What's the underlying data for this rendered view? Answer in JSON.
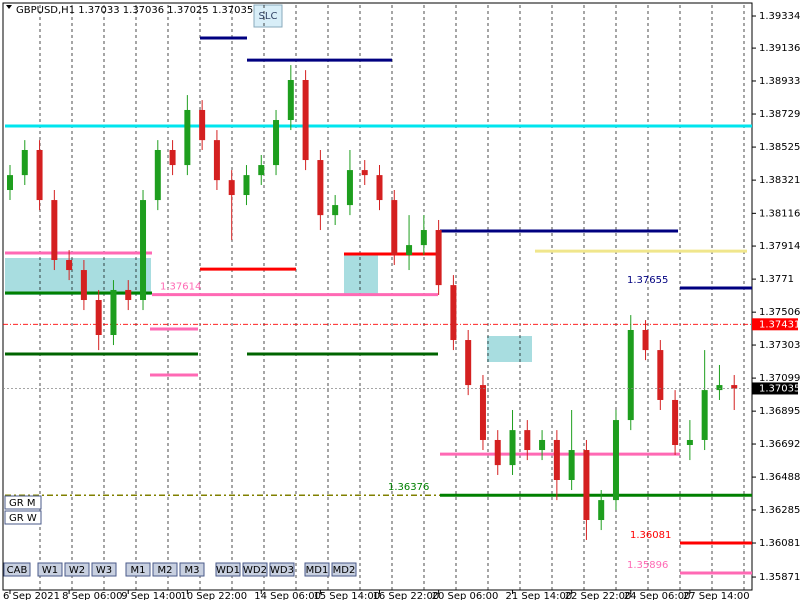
{
  "chart_data": {
    "type": "candlestick",
    "title": "GBPUSD,H1  1.37033 1.37036 1.37025 1.37035",
    "slc_button": "SLC",
    "buttons": [
      "CAB",
      "W1",
      "W2",
      "W3",
      "M1",
      "M2",
      "M3",
      "WD1",
      "WD2",
      "WD3",
      "MD1",
      "MD2"
    ],
    "side_buttons": [
      "GR M",
      "GR W"
    ],
    "categories": [
      "6 Sep 2021",
      null,
      null,
      null,
      "8 Sep 06:00",
      null,
      null,
      null,
      "9 Sep 14:00",
      null,
      null,
      null,
      "10 Sep 22:00",
      null,
      null,
      null,
      null,
      "14 Sep 06:00",
      null,
      null,
      null,
      "15 Sep 14:00",
      null,
      null,
      null,
      "16 Sep 22:00",
      null,
      null,
      null,
      "20 Sep 06:00",
      null,
      null,
      null,
      null,
      "21 Sep 14:00",
      null,
      null,
      null,
      "22 Sep 22:00",
      null,
      null,
      null,
      "24 Sep 06:00",
      null,
      null,
      null,
      "27 Sep 14:00",
      null,
      null,
      null
    ],
    "open": [
      1.3826,
      1.38352,
      1.38507,
      1.38198,
      1.37828,
      1.37766,
      1.37581,
      1.37365,
      1.37643,
      1.37581,
      1.38198,
      1.38507,
      1.38414,
      1.38754,
      1.38568,
      1.38321,
      1.38229,
      1.38352,
      1.38414,
      1.38692,
      1.38939,
      1.38445,
      1.38105,
      1.38167,
      1.38383,
      1.38352,
      1.38198,
      1.37859,
      1.3792,
      1.38013,
      1.37673,
      1.37334,
      1.37056,
      1.36717,
      1.36562,
      1.36778,
      1.36655,
      1.36717,
      1.3647,
      1.36655,
      1.36223,
      1.36346,
      1.3684,
      1.37396,
      1.37272,
      1.36964,
      1.36686,
      1.36717,
      1.37025,
      1.37056
    ],
    "high": [
      1.38414,
      1.38568,
      1.38568,
      1.3826,
      1.37889,
      1.37828,
      1.37643,
      1.37704,
      1.37704,
      1.3826,
      1.38568,
      1.38568,
      1.38846,
      1.38815,
      1.3863,
      1.38383,
      1.38414,
      1.38476,
      1.38754,
      1.39031,
      1.39,
      1.38507,
      1.38229,
      1.38507,
      1.38445,
      1.38414,
      1.3826,
      1.38105,
      1.38105,
      1.38075,
      1.37735,
      1.37396,
      1.37118,
      1.36778,
      1.36902,
      1.3684,
      1.36778,
      1.36778,
      1.36902,
      1.36717,
      1.36408,
      1.36902,
      1.37488,
      1.37457,
      1.37334,
      1.37025,
      1.3684,
      1.37272,
      1.3718,
      1.37118
    ],
    "low": [
      1.38198,
      1.38291,
      1.38136,
      1.37766,
      1.37704,
      1.37519,
      1.37272,
      1.37303,
      1.37519,
      1.37519,
      1.38136,
      1.38352,
      1.38352,
      1.38507,
      1.3826,
      1.37951,
      1.38167,
      1.38291,
      1.38352,
      1.3863,
      1.38383,
      1.38013,
      1.38044,
      1.38105,
      1.38291,
      1.38136,
      1.37797,
      1.37766,
      1.37859,
      1.37612,
      1.37272,
      1.36994,
      1.36655,
      1.36501,
      1.36501,
      1.36593,
      1.36593,
      1.36346,
      1.36408,
      1.361,
      1.36161,
      1.36285,
      1.36778,
      1.3721,
      1.36902,
      1.36624,
      1.36593,
      1.36655,
      1.36964,
      1.36902
    ],
    "close": [
      1.38352,
      1.38507,
      1.38198,
      1.37828,
      1.37766,
      1.37581,
      1.37365,
      1.37643,
      1.37581,
      1.38198,
      1.38507,
      1.38414,
      1.38754,
      1.38568,
      1.38321,
      1.38229,
      1.38352,
      1.38414,
      1.38692,
      1.38939,
      1.38445,
      1.38105,
      1.38167,
      1.38383,
      1.38352,
      1.38198,
      1.37859,
      1.3792,
      1.38013,
      1.37673,
      1.37334,
      1.37056,
      1.36717,
      1.36562,
      1.36778,
      1.36655,
      1.36717,
      1.3647,
      1.36655,
      1.36223,
      1.36346,
      1.3684,
      1.37396,
      1.37272,
      1.36964,
      1.36686,
      1.36717,
      1.37025,
      1.37056,
      1.37035
    ],
    "up_color": "#1e9e1e",
    "down_color": "#d42020",
    "ylim": [
      1.35791,
      1.39402
    ],
    "yticks": [
      1.39334,
      1.39136,
      1.38933,
      1.38729,
      1.38525,
      1.38321,
      1.38116,
      1.37914,
      1.3771,
      1.37506,
      1.37303,
      1.37099,
      1.36895,
      1.36692,
      1.36488,
      1.36285,
      1.36081,
      1.35871
    ],
    "grid": true,
    "levels": [
      {
        "value": 1.39198,
        "color": "#000080"
      },
      {
        "value": 1.39062,
        "color": "#000080"
      },
      {
        "value": 1.38655,
        "color": "#00e5ee"
      },
      {
        "value": 1.37871,
        "color": "#ff69b4"
      },
      {
        "value": 1.37624,
        "color": "#008000"
      },
      {
        "value": 1.37772,
        "color": "#ff0000"
      },
      {
        "value": 1.37865,
        "color": "#ff0000"
      },
      {
        "value": 1.37614,
        "color": "#ff69b4",
        "labeled": true
      },
      {
        "value": 1.37402,
        "color": "#ff69b4"
      },
      {
        "value": 1.37248,
        "color": "#006400"
      },
      {
        "value": 1.37248,
        "color": "#006400"
      },
      {
        "value": 1.37118,
        "color": "#ff69b4"
      },
      {
        "value": 1.38007,
        "color": "#000080"
      },
      {
        "value": 1.37883,
        "color": "#f0e68c"
      },
      {
        "value": 1.37655,
        "color": "#000080",
        "labeled": true
      },
      {
        "value": 1.3663,
        "color": "#ff69b4"
      },
      {
        "value": 1.36376,
        "color": "#008000",
        "labeled": true
      },
      {
        "value": 1.36081,
        "color": "#ff0000",
        "labeled": true
      },
      {
        "value": 1.35896,
        "color": "#ff69b4",
        "labeled": true
      },
      {
        "value": 1.36376,
        "color": "#808000",
        "style": "dashdot"
      }
    ],
    "marker_price": {
      "value": 1.37431,
      "color": "#ff0000"
    },
    "last_price": {
      "value": 1.37035,
      "color": "#000000"
    }
  }
}
